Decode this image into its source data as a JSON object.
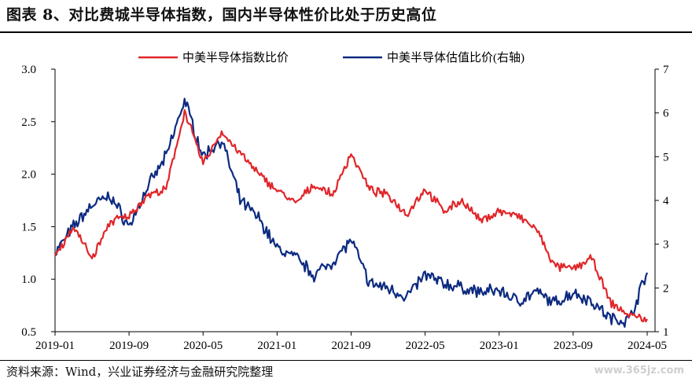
{
  "header": {
    "title": "图表 8、对比费城半导体指数，国内半导体性价比处于历史高位"
  },
  "footer": {
    "source": "资料来源：Wind，兴业证券经济与金融研究院整理",
    "watermark": "www.365jz.com"
  },
  "colors": {
    "series_left": "#e0262a",
    "series_right": "#0c2a80",
    "axis": "#000000"
  },
  "chart_data": {
    "type": "line",
    "title": "",
    "xlabel": "",
    "ylabel": "",
    "x_ticks": [
      "2019-01",
      "2019-09",
      "2020-05",
      "2021-01",
      "2021-09",
      "2022-05",
      "2023-01",
      "2023-09",
      "2024-05"
    ],
    "x": [
      "2019-01",
      "2019-03",
      "2019-05",
      "2019-07",
      "2019-09",
      "2019-11",
      "2020-01",
      "2020-03",
      "2020-05",
      "2020-07",
      "2020-09",
      "2020-11",
      "2021-01",
      "2021-03",
      "2021-05",
      "2021-07",
      "2021-09",
      "2021-11",
      "2022-01",
      "2022-03",
      "2022-05",
      "2022-07",
      "2022-09",
      "2022-11",
      "2023-01",
      "2023-03",
      "2023-05",
      "2023-07",
      "2023-09",
      "2023-11",
      "2024-01",
      "2024-03",
      "2024-05"
    ],
    "y_left": {
      "range": [
        0.5,
        3.0
      ],
      "ticks": [
        "0.5",
        "1.0",
        "1.5",
        "2.0",
        "2.5",
        "3.0"
      ]
    },
    "y_right": {
      "range": [
        1,
        7
      ],
      "ticks": [
        "1",
        "2",
        "3",
        "4",
        "5",
        "6",
        "7"
      ]
    },
    "legend": {
      "position": "top-center"
    },
    "series": [
      {
        "name": "中美半导体指数比价",
        "axis": "left",
        "values": [
          1.22,
          1.5,
          1.2,
          1.55,
          1.6,
          1.8,
          1.85,
          2.6,
          2.1,
          2.4,
          2.2,
          2.0,
          1.85,
          1.72,
          1.9,
          1.8,
          2.2,
          1.85,
          1.8,
          1.62,
          1.86,
          1.65,
          1.75,
          1.55,
          1.65,
          1.6,
          1.48,
          1.12,
          1.1,
          1.2,
          0.78,
          0.66,
          0.62
        ]
      },
      {
        "name": "中美半导体估值比价(右轴)",
        "axis": "right",
        "values": [
          2.8,
          3.4,
          3.9,
          4.1,
          3.4,
          4.3,
          5.0,
          6.3,
          5.0,
          5.4,
          4.0,
          3.6,
          2.9,
          2.7,
          2.3,
          2.6,
          3.1,
          2.1,
          2.0,
          1.8,
          2.3,
          2.1,
          2.0,
          1.9,
          1.95,
          1.7,
          1.9,
          1.65,
          1.9,
          1.7,
          1.3,
          1.25,
          2.35
        ]
      }
    ]
  }
}
